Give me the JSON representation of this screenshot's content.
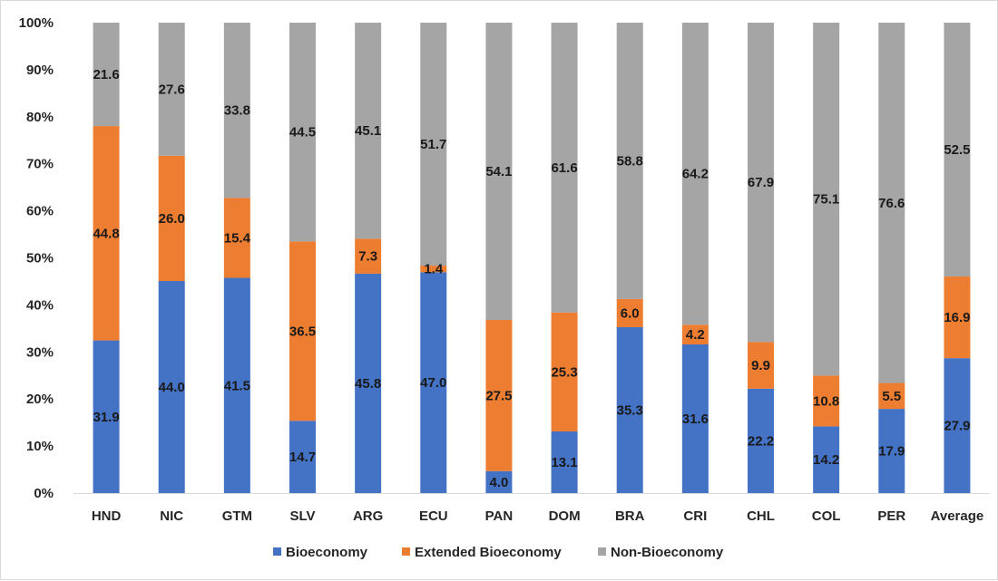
{
  "chart_data": {
    "type": "bar",
    "stacked": true,
    "percent_scale": true,
    "categories": [
      "HND",
      "NIC",
      "GTM",
      "SLV",
      "ARG",
      "ECU",
      "PAN",
      "DOM",
      "BRA",
      "CRI",
      "CHL",
      "COL",
      "PER",
      "Average"
    ],
    "series": [
      {
        "name": "Bioeconomy",
        "color": "#4472c4",
        "values": [
          31.9,
          44.0,
          41.5,
          14.7,
          45.8,
          47.0,
          4.0,
          13.1,
          35.3,
          31.6,
          22.2,
          14.2,
          17.9,
          27.9
        ]
      },
      {
        "name": "Extended Bioeconomy",
        "color": "#ed7d31",
        "values": [
          44.8,
          26.0,
          15.4,
          36.5,
          7.3,
          1.4,
          27.5,
          25.3,
          6.0,
          4.2,
          9.9,
          10.8,
          5.5,
          16.9
        ]
      },
      {
        "name": "Non-Bioeconomy",
        "color": "#a5a5a5",
        "values": [
          21.6,
          27.6,
          33.8,
          44.5,
          45.1,
          51.7,
          54.1,
          61.6,
          58.8,
          64.2,
          67.9,
          75.1,
          76.6,
          52.5
        ]
      }
    ],
    "y_ticks": [
      "0%",
      "10%",
      "20%",
      "30%",
      "40%",
      "50%",
      "60%",
      "70%",
      "80%",
      "90%",
      "100%"
    ],
    "ylim": [
      0,
      100
    ],
    "grid": false,
    "legend_position": "bottom",
    "title": "",
    "xlabel": "",
    "ylabel": ""
  }
}
